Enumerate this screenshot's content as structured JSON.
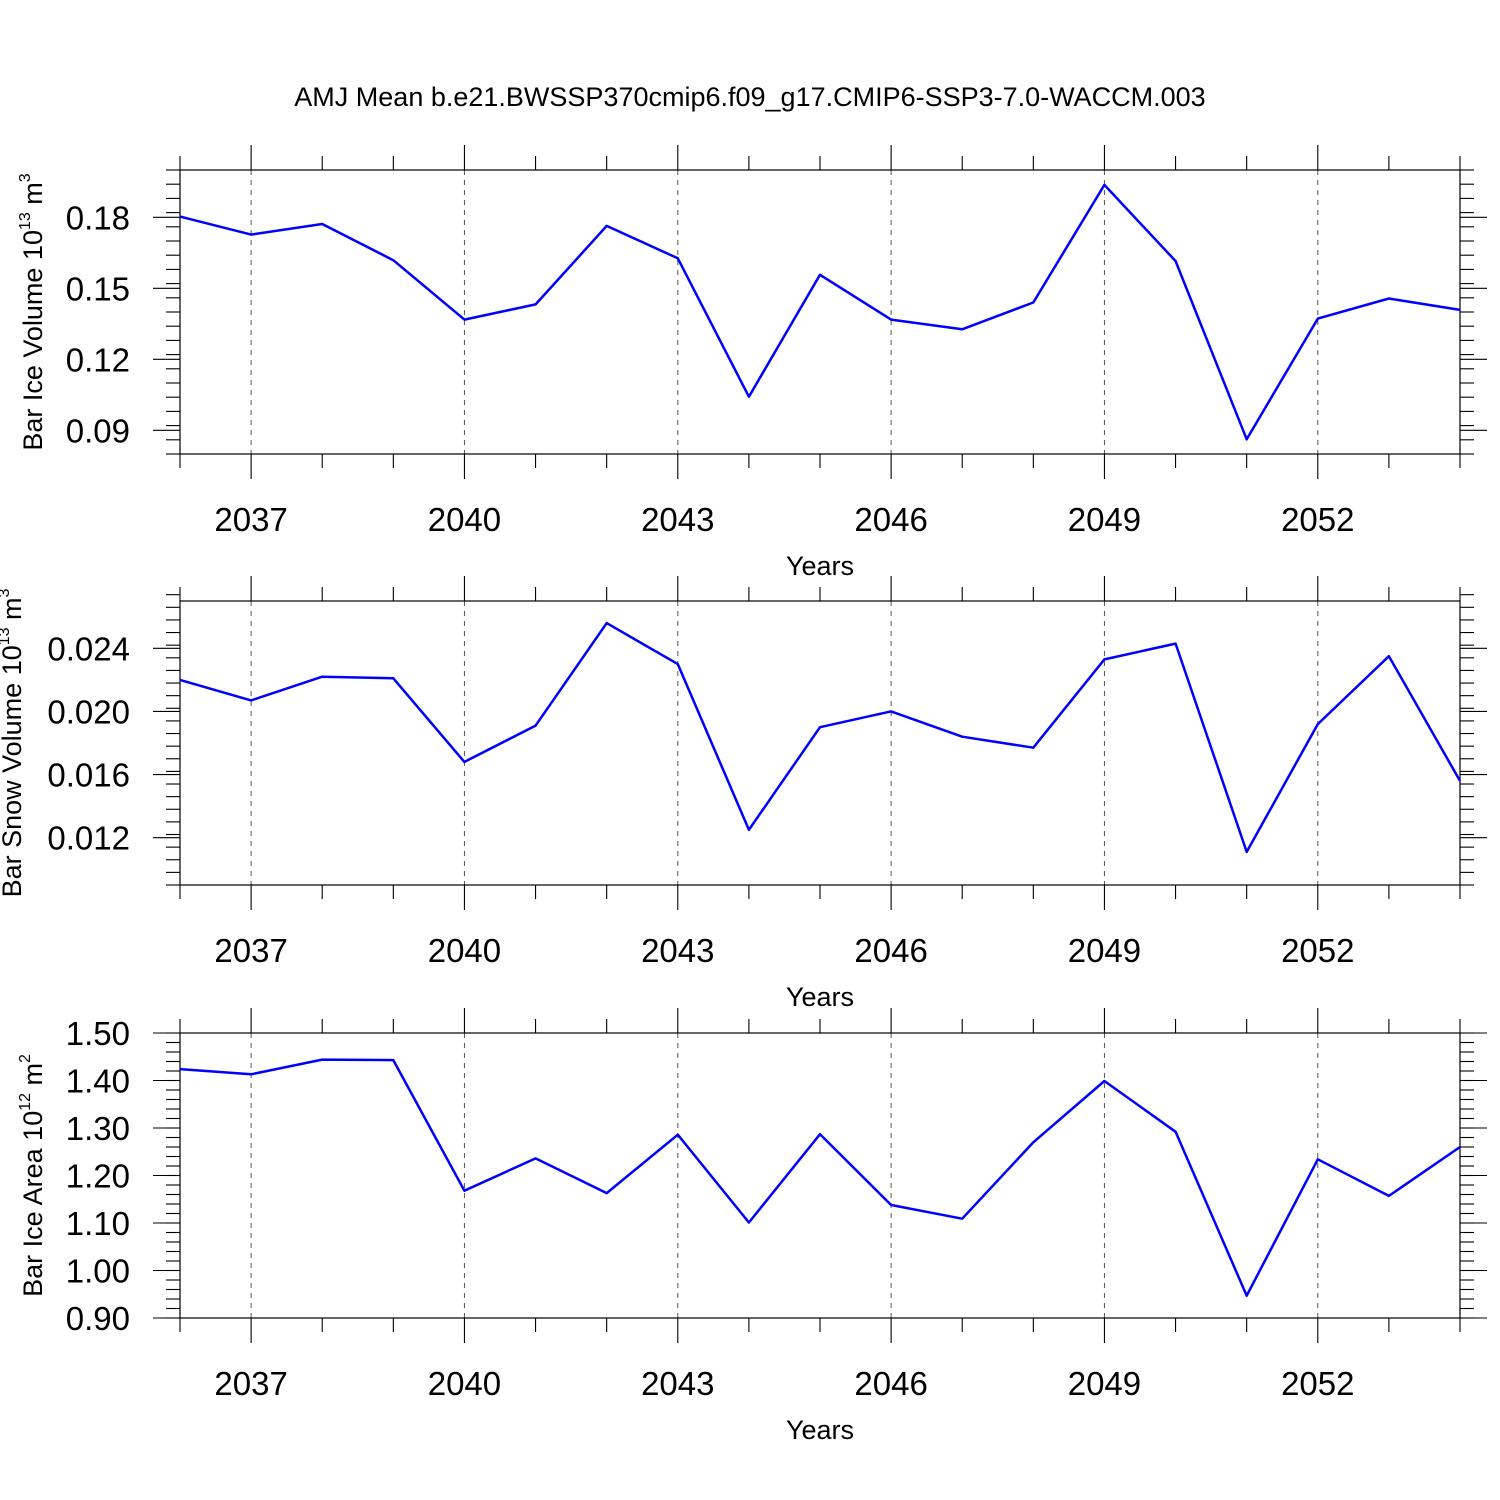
{
  "title": "AMJ Mean b.e21.BWSSP370cmip6.f09_g17.CMIP6-SSP3-7.0-WACCM.003",
  "chart_data": [
    {
      "type": "line",
      "title": "AMJ Mean b.e21.BWSSP370cmip6.f09_g17.CMIP6-SSP3-7.0-WACCM.003",
      "xlabel": "Years",
      "ylabel_main": "Bar Ice Volume 10",
      "ylabel_exp": "13",
      "ylabel_unit": " m",
      "ylabel_unit_exp": "3",
      "x": [
        2036,
        2037,
        2038,
        2039,
        2040,
        2041,
        2042,
        2043,
        2044,
        2045,
        2046,
        2047,
        2048,
        2049,
        2050,
        2051,
        2052,
        2053,
        2054
      ],
      "xlim": [
        2036,
        2054
      ],
      "xticks": [
        2037,
        2040,
        2043,
        2046,
        2049,
        2052
      ],
      "xtick_labels": [
        "2037",
        "2040",
        "2043",
        "2046",
        "2049",
        "2052"
      ],
      "ylim": [
        0.08,
        0.2
      ],
      "yticks": [
        0.09,
        0.12,
        0.15,
        0.18
      ],
      "ytick_labels": [
        "0.09",
        "0.12",
        "0.15",
        "0.18"
      ],
      "y_minor_step": 0.006,
      "grid": "vertical dashed at major x ticks",
      "series": [
        {
          "values": [
            0.1803,
            0.1727,
            0.1772,
            0.1619,
            0.1368,
            0.1432,
            0.1764,
            0.1627,
            0.1042,
            0.1557,
            0.1368,
            0.1327,
            0.144,
            0.1937,
            0.1615,
            0.0862,
            0.1372,
            0.1457,
            0.1409
          ]
        }
      ]
    },
    {
      "type": "line",
      "xlabel": "Years",
      "ylabel_main": "Bar Snow Volume 10",
      "ylabel_exp": "13",
      "ylabel_unit": " m",
      "ylabel_unit_exp": "3",
      "x": [
        2036,
        2037,
        2038,
        2039,
        2040,
        2041,
        2042,
        2043,
        2044,
        2045,
        2046,
        2047,
        2048,
        2049,
        2050,
        2051,
        2052,
        2053,
        2054
      ],
      "xlim": [
        2036,
        2054
      ],
      "xticks": [
        2037,
        2040,
        2043,
        2046,
        2049,
        2052
      ],
      "xtick_labels": [
        "2037",
        "2040",
        "2043",
        "2046",
        "2049",
        "2052"
      ],
      "ylim": [
        0.009,
        0.027
      ],
      "yticks": [
        0.012,
        0.016,
        0.02,
        0.024
      ],
      "ytick_labels": [
        "0.012",
        "0.016",
        "0.020",
        "0.024"
      ],
      "y_minor_step": 0.0008,
      "grid": "vertical dashed at major x ticks",
      "series": [
        {
          "values": [
            0.022,
            0.0207,
            0.0222,
            0.0221,
            0.0168,
            0.0191,
            0.0256,
            0.023,
            0.0125,
            0.019,
            0.02,
            0.0184,
            0.0177,
            0.0233,
            0.0243,
            0.0111,
            0.0192,
            0.0235,
            0.0156
          ]
        }
      ]
    },
    {
      "type": "line",
      "xlabel": "Years",
      "ylabel_main": "Bar Ice Area 10",
      "ylabel_exp": "12",
      "ylabel_unit": " m",
      "ylabel_unit_exp": "2",
      "x": [
        2036,
        2037,
        2038,
        2039,
        2040,
        2041,
        2042,
        2043,
        2044,
        2045,
        2046,
        2047,
        2048,
        2049,
        2050,
        2051,
        2052,
        2053,
        2054
      ],
      "xlim": [
        2036,
        2054
      ],
      "xticks": [
        2037,
        2040,
        2043,
        2046,
        2049,
        2052
      ],
      "xtick_labels": [
        "2037",
        "2040",
        "2043",
        "2046",
        "2049",
        "2052"
      ],
      "ylim": [
        0.9,
        1.5
      ],
      "yticks": [
        0.9,
        1.0,
        1.1,
        1.2,
        1.3,
        1.4,
        1.5
      ],
      "ytick_labels": [
        "0.90",
        "1.00",
        "1.10",
        "1.20",
        "1.30",
        "1.40",
        "1.50"
      ],
      "y_minor_step": 0.02,
      "grid": "vertical dashed at major x ticks",
      "series": [
        {
          "values": [
            1.424,
            1.413,
            1.444,
            1.443,
            1.168,
            1.236,
            1.163,
            1.286,
            1.101,
            1.287,
            1.138,
            1.109,
            1.27,
            1.399,
            1.292,
            0.947,
            1.234,
            1.157,
            1.26
          ]
        }
      ]
    }
  ],
  "colors": {
    "series": "#0000ff",
    "axis": "#000000",
    "grid": "#555555"
  }
}
